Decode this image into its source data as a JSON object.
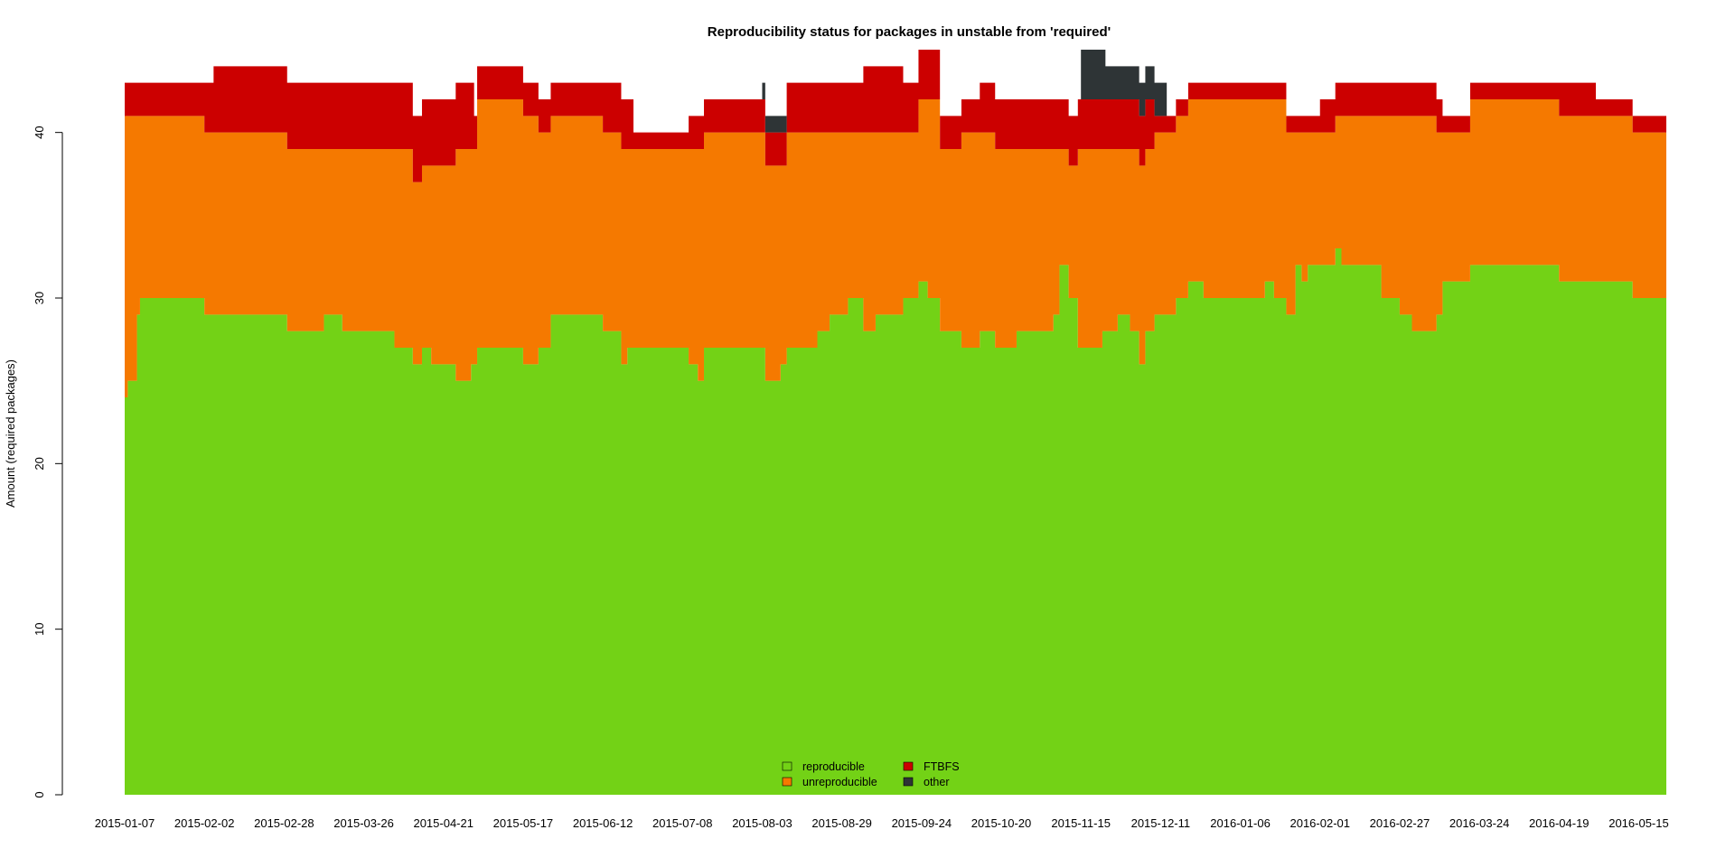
{
  "chart_data": {
    "type": "area",
    "title": "Reproducibility status for packages in unstable from 'required'",
    "xlabel": "",
    "ylabel": "Amount (required packages)",
    "ylim": [
      0,
      45
    ],
    "yticks": [
      0,
      10,
      20,
      30,
      40
    ],
    "x_tick_labels": [
      "2015-01-07",
      "2015-02-02",
      "2015-02-28",
      "2015-03-26",
      "2015-04-21",
      "2015-05-17",
      "2015-06-12",
      "2015-07-08",
      "2015-08-03",
      "2015-08-29",
      "2015-09-24",
      "2015-10-20",
      "2015-11-15",
      "2015-12-11",
      "2016-01-06",
      "2016-02-01",
      "2016-02-27",
      "2016-03-24",
      "2016-04-19",
      "2016-05-15"
    ],
    "x_tick_day_offsets": [
      0,
      26,
      52,
      78,
      104,
      130,
      156,
      182,
      208,
      234,
      260,
      286,
      312,
      338,
      364,
      390,
      416,
      442,
      468,
      494
    ],
    "day_span": 503,
    "legend": {
      "position": "bottom-center"
    },
    "series": [
      {
        "name": "reproducible",
        "color": "#73d216",
        "points": [
          [
            0,
            24
          ],
          [
            1,
            25
          ],
          [
            4,
            29
          ],
          [
            5,
            30
          ],
          [
            26,
            29
          ],
          [
            53,
            28
          ],
          [
            65,
            29
          ],
          [
            71,
            28
          ],
          [
            88,
            27
          ],
          [
            94,
            26
          ],
          [
            97,
            27
          ],
          [
            100,
            26
          ],
          [
            108,
            25
          ],
          [
            113,
            26
          ],
          [
            115,
            27
          ],
          [
            130,
            26
          ],
          [
            135,
            27
          ],
          [
            139,
            29
          ],
          [
            156,
            28
          ],
          [
            162,
            26
          ],
          [
            164,
            27
          ],
          [
            184,
            26
          ],
          [
            187,
            25
          ],
          [
            189,
            27
          ],
          [
            209,
            25
          ],
          [
            214,
            26
          ],
          [
            216,
            27
          ],
          [
            226,
            28
          ],
          [
            230,
            29
          ],
          [
            236,
            30
          ],
          [
            241,
            28
          ],
          [
            245,
            29
          ],
          [
            254,
            30
          ],
          [
            259,
            31
          ],
          [
            262,
            30
          ],
          [
            266,
            28
          ],
          [
            273,
            27
          ],
          [
            279,
            28
          ],
          [
            284,
            27
          ],
          [
            291,
            28
          ],
          [
            300,
            28
          ],
          [
            303,
            29
          ],
          [
            305,
            32
          ],
          [
            308,
            30
          ],
          [
            311,
            27
          ],
          [
            319,
            28
          ],
          [
            324,
            29
          ],
          [
            328,
            28
          ],
          [
            331,
            26
          ],
          [
            333,
            28
          ],
          [
            336,
            29
          ],
          [
            343,
            30
          ],
          [
            347,
            31
          ],
          [
            352,
            30
          ],
          [
            372,
            31
          ],
          [
            375,
            30
          ],
          [
            379,
            29
          ],
          [
            382,
            32
          ],
          [
            384,
            31
          ],
          [
            386,
            32
          ],
          [
            395,
            33
          ],
          [
            397,
            32
          ],
          [
            410,
            30
          ],
          [
            416,
            29
          ],
          [
            420,
            28
          ],
          [
            428,
            29
          ],
          [
            430,
            31
          ],
          [
            439,
            32
          ],
          [
            468,
            31
          ],
          [
            492,
            30
          ],
          [
            503,
            31
          ]
        ]
      },
      {
        "name": "unreproducible",
        "color": "#f57900",
        "points": [
          [
            0,
            17
          ],
          [
            1,
            16
          ],
          [
            4,
            12
          ],
          [
            5,
            11
          ],
          [
            26,
            11
          ],
          [
            29,
            11
          ],
          [
            39,
            11
          ],
          [
            47,
            11
          ],
          [
            53,
            11
          ],
          [
            65,
            10
          ],
          [
            71,
            11
          ],
          [
            88,
            12
          ],
          [
            94,
            11
          ],
          [
            97,
            11
          ],
          [
            100,
            12
          ],
          [
            108,
            14
          ],
          [
            113,
            13
          ],
          [
            115,
            15
          ],
          [
            130,
            15
          ],
          [
            135,
            13
          ],
          [
            139,
            12
          ],
          [
            156,
            12
          ],
          [
            162,
            13
          ],
          [
            164,
            12
          ],
          [
            184,
            13
          ],
          [
            187,
            14
          ],
          [
            189,
            13
          ],
          [
            209,
            13
          ],
          [
            214,
            12
          ],
          [
            216,
            13
          ],
          [
            226,
            12
          ],
          [
            230,
            11
          ],
          [
            236,
            10
          ],
          [
            241,
            12
          ],
          [
            245,
            11
          ],
          [
            254,
            10
          ],
          [
            259,
            11
          ],
          [
            262,
            12
          ],
          [
            266,
            11
          ],
          [
            273,
            13
          ],
          [
            279,
            12
          ],
          [
            284,
            12
          ],
          [
            291,
            11
          ],
          [
            300,
            11
          ],
          [
            303,
            10
          ],
          [
            305,
            7
          ],
          [
            308,
            8
          ],
          [
            311,
            12
          ],
          [
            319,
            11
          ],
          [
            324,
            10
          ],
          [
            328,
            11
          ],
          [
            331,
            12
          ],
          [
            333,
            11
          ],
          [
            336,
            11
          ],
          [
            343,
            11
          ],
          [
            347,
            11
          ],
          [
            352,
            12
          ],
          [
            372,
            11
          ],
          [
            375,
            12
          ],
          [
            379,
            11
          ],
          [
            382,
            8
          ],
          [
            384,
            9
          ],
          [
            386,
            8
          ],
          [
            395,
            8
          ],
          [
            397,
            9
          ],
          [
            410,
            11
          ],
          [
            416,
            12
          ],
          [
            420,
            13
          ],
          [
            428,
            11
          ],
          [
            430,
            9
          ],
          [
            439,
            10
          ],
          [
            468,
            10
          ],
          [
            492,
            10
          ],
          [
            503,
            8
          ]
        ]
      },
      {
        "name": "FTBFS",
        "color": "#cc0000",
        "points": [
          [
            0,
            2
          ],
          [
            26,
            3
          ],
          [
            29,
            4
          ],
          [
            39,
            4
          ],
          [
            47,
            4
          ],
          [
            53,
            4
          ],
          [
            65,
            4
          ],
          [
            88,
            4
          ],
          [
            94,
            4
          ],
          [
            104,
            4
          ],
          [
            114,
            2
          ],
          [
            130,
            2
          ],
          [
            144,
            2
          ],
          [
            156,
            3
          ],
          [
            166,
            1
          ],
          [
            184,
            2
          ],
          [
            196,
            2
          ],
          [
            209,
            2
          ],
          [
            216,
            3
          ],
          [
            226,
            3
          ],
          [
            241,
            4
          ],
          [
            254,
            3
          ],
          [
            266,
            2
          ],
          [
            279,
            3
          ],
          [
            291,
            3
          ],
          [
            300,
            3
          ],
          [
            319,
            3
          ],
          [
            336,
            1
          ],
          [
            343,
            1
          ],
          [
            347,
            1
          ],
          [
            362,
            1
          ],
          [
            380,
            1
          ],
          [
            390,
            2
          ],
          [
            410,
            2
          ],
          [
            430,
            1
          ],
          [
            446,
            1
          ],
          [
            468,
            2
          ],
          [
            480,
            1
          ],
          [
            492,
            1
          ],
          [
            503,
            4
          ]
        ]
      },
      {
        "name": "other",
        "color": "#2e3436",
        "points": [
          [
            0,
            0
          ],
          [
            208,
            1
          ],
          [
            216,
            0
          ],
          [
            308,
            0
          ],
          [
            312,
            3
          ],
          [
            320,
            2
          ],
          [
            340,
            0
          ],
          [
            503,
            1
          ]
        ]
      }
    ]
  }
}
